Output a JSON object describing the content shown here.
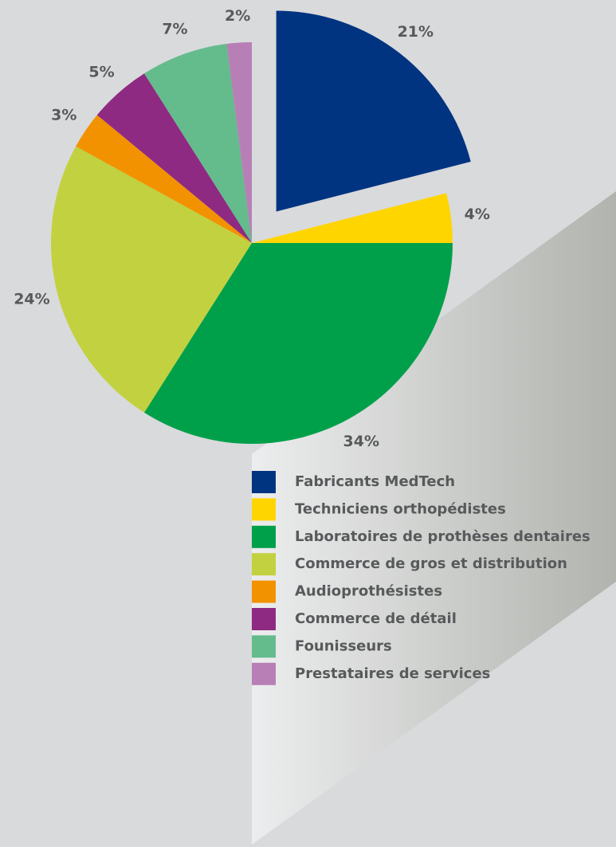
{
  "chart_data": {
    "type": "pie",
    "categories": [
      "Fabricants MedTech",
      "Techniciens orthopédistes",
      "Laboratoires de prothèses dentaires",
      "Commerce de gros et distribution",
      "Audioprothésistes",
      "Commerce de détail",
      "Founisseurs",
      "Prestataires de services"
    ],
    "values": [
      21,
      4,
      34,
      24,
      3,
      5,
      7,
      2
    ],
    "value_labels": [
      "21%",
      "4%",
      "34%",
      "24%",
      "3%",
      "5%",
      "7%",
      "2%"
    ],
    "colors": [
      "#003380",
      "#ffd500",
      "#00a04a",
      "#c2d13f",
      "#f39200",
      "#8e2a82",
      "#64bb8c",
      "#b77fb5"
    ],
    "exploded": [
      0
    ]
  }
}
